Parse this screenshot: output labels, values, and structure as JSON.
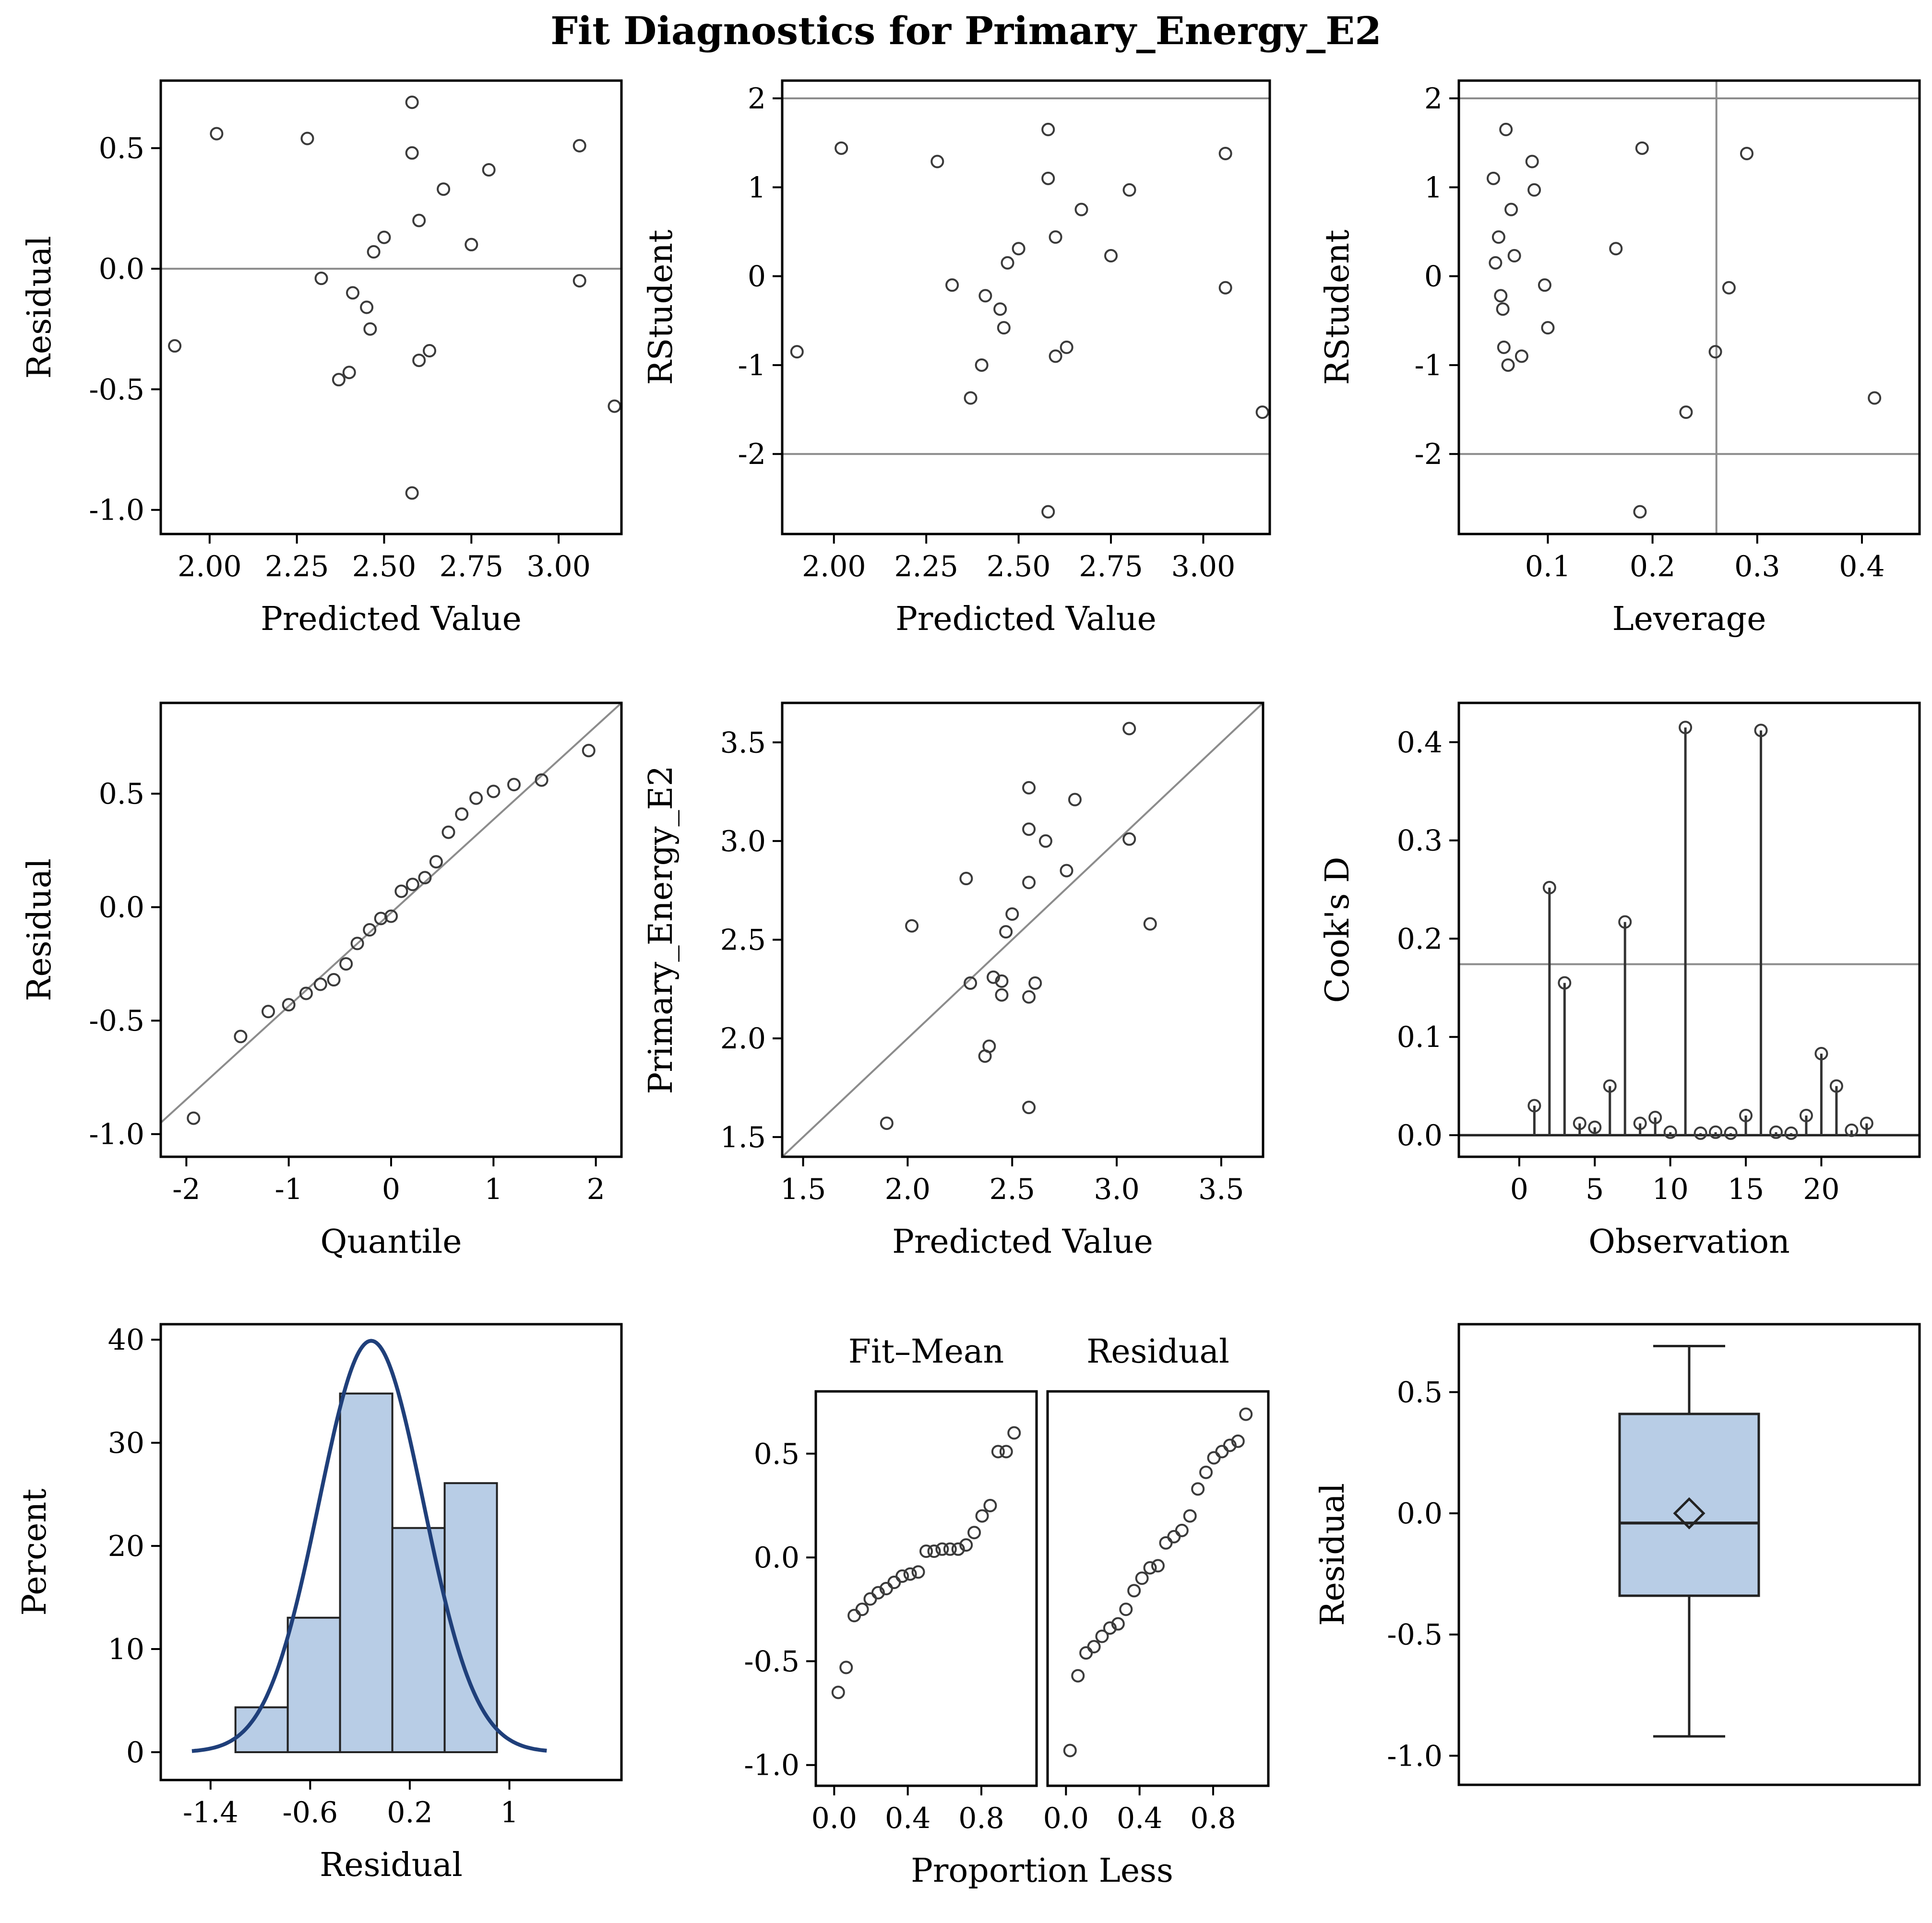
{
  "title": "Fit Diagnostics for Primary_Energy_E2",
  "colors": {
    "marker": "#3a3a3a",
    "reference": "#8c8c8c",
    "bar_fill": "#b8cde6",
    "curve": "#1f3f7a",
    "frame": "#000000"
  },
  "chart_data": [
    {
      "id": "residual-vs-predicted",
      "type": "scatter",
      "xlabel": "Predicted Value",
      "ylabel": "Residual",
      "xlim": [
        1.86,
        3.18
      ],
      "ylim": [
        -1.1,
        0.78
      ],
      "xticks": [
        2.0,
        2.25,
        2.5,
        2.75,
        3.0
      ],
      "xtick_labels": [
        "2.00",
        "2.25",
        "2.50",
        "2.75",
        "3.00"
      ],
      "yticks": [
        -1.0,
        -0.5,
        0.0,
        0.5
      ],
      "ytick_labels": [
        "-1.0",
        "-0.5",
        "0.0",
        "0.5"
      ],
      "hlines": [
        0
      ],
      "points": [
        [
          1.9,
          -0.32
        ],
        [
          2.02,
          0.56
        ],
        [
          2.28,
          0.54
        ],
        [
          2.32,
          -0.04
        ],
        [
          2.37,
          -0.46
        ],
        [
          2.4,
          -0.43
        ],
        [
          2.41,
          -0.1
        ],
        [
          2.45,
          -0.16
        ],
        [
          2.46,
          -0.25
        ],
        [
          2.47,
          0.07
        ],
        [
          2.5,
          0.13
        ],
        [
          2.58,
          0.69
        ],
        [
          2.58,
          0.48
        ],
        [
          2.58,
          -0.93
        ],
        [
          2.6,
          0.2
        ],
        [
          2.6,
          -0.38
        ],
        [
          2.63,
          -0.34
        ],
        [
          2.67,
          0.33
        ],
        [
          2.75,
          0.1
        ],
        [
          2.8,
          0.41
        ],
        [
          3.06,
          0.51
        ],
        [
          3.06,
          -0.05
        ],
        [
          3.16,
          -0.57
        ]
      ]
    },
    {
      "id": "rstudent-vs-predicted",
      "type": "scatter",
      "xlabel": "Predicted Value",
      "ylabel": "RStudent",
      "xlim": [
        1.86,
        3.18
      ],
      "ylim": [
        -2.9,
        2.2
      ],
      "xticks": [
        2.0,
        2.25,
        2.5,
        2.75,
        3.0
      ],
      "xtick_labels": [
        "2.00",
        "2.25",
        "2.50",
        "2.75",
        "3.00"
      ],
      "yticks": [
        -2,
        -1,
        0,
        1,
        2
      ],
      "ytick_labels": [
        "-2",
        "-1",
        "0",
        "1",
        "2"
      ],
      "hlines": [
        -2,
        2
      ],
      "points": [
        [
          1.9,
          -0.85
        ],
        [
          2.02,
          1.44
        ],
        [
          2.28,
          1.29
        ],
        [
          2.32,
          -0.1
        ],
        [
          2.37,
          -1.37
        ],
        [
          2.4,
          -1.0
        ],
        [
          2.41,
          -0.22
        ],
        [
          2.45,
          -0.37
        ],
        [
          2.46,
          -0.58
        ],
        [
          2.47,
          0.15
        ],
        [
          2.5,
          0.31
        ],
        [
          2.58,
          1.65
        ],
        [
          2.58,
          1.1
        ],
        [
          2.58,
          -2.65
        ],
        [
          2.6,
          0.44
        ],
        [
          2.6,
          -0.9
        ],
        [
          2.63,
          -0.8
        ],
        [
          2.67,
          0.75
        ],
        [
          2.75,
          0.23
        ],
        [
          2.8,
          0.97
        ],
        [
          3.06,
          1.38
        ],
        [
          3.06,
          -0.13
        ],
        [
          3.16,
          -1.53
        ]
      ]
    },
    {
      "id": "rstudent-vs-leverage",
      "type": "scatter",
      "xlabel": "Leverage",
      "ylabel": "RStudent",
      "xlim": [
        0.015,
        0.455
      ],
      "ylim": [
        -2.9,
        2.2
      ],
      "xticks": [
        0.1,
        0.2,
        0.3,
        0.4
      ],
      "xtick_labels": [
        "0.1",
        "0.2",
        "0.3",
        "0.4"
      ],
      "yticks": [
        -2,
        -1,
        0,
        1,
        2
      ],
      "ytick_labels": [
        "-2",
        "-1",
        "0",
        "1",
        "2"
      ],
      "hlines": [
        -2,
        2
      ],
      "vlines": [
        0.261
      ],
      "points": [
        [
          0.048,
          1.1
        ],
        [
          0.05,
          0.15
        ],
        [
          0.053,
          0.44
        ],
        [
          0.055,
          -0.22
        ],
        [
          0.057,
          -0.37
        ],
        [
          0.058,
          -0.8
        ],
        [
          0.06,
          1.65
        ],
        [
          0.062,
          -1.0
        ],
        [
          0.065,
          0.75
        ],
        [
          0.068,
          0.23
        ],
        [
          0.075,
          -0.9
        ],
        [
          0.085,
          1.29
        ],
        [
          0.087,
          0.97
        ],
        [
          0.097,
          -0.1
        ],
        [
          0.1,
          -0.58
        ],
        [
          0.165,
          0.31
        ],
        [
          0.188,
          -2.65
        ],
        [
          0.19,
          1.44
        ],
        [
          0.232,
          -1.53
        ],
        [
          0.26,
          -0.85
        ],
        [
          0.273,
          -0.13
        ],
        [
          0.29,
          1.38
        ],
        [
          0.412,
          -1.37
        ]
      ]
    },
    {
      "id": "residual-qq",
      "type": "scatter",
      "xlabel": "Quantile",
      "ylabel": "Residual",
      "xlim": [
        -2.25,
        2.25
      ],
      "ylim": [
        -1.1,
        0.9
      ],
      "xticks": [
        -2,
        -1,
        0,
        1,
        2
      ],
      "xtick_labels": [
        "-2",
        "-1",
        "0",
        "1",
        "2"
      ],
      "yticks": [
        -1.0,
        -0.5,
        0.0,
        0.5
      ],
      "ytick_labels": [
        "-1.0",
        "-0.5",
        "0.0",
        "0.5"
      ],
      "refline": [
        [
          -2.25,
          -0.95
        ],
        [
          2.25,
          0.9
        ]
      ],
      "points": [
        [
          -1.93,
          -0.93
        ],
        [
          -1.47,
          -0.57
        ],
        [
          -1.2,
          -0.46
        ],
        [
          -1.0,
          -0.43
        ],
        [
          -0.83,
          -0.38
        ],
        [
          -0.69,
          -0.34
        ],
        [
          -0.56,
          -0.32
        ],
        [
          -0.44,
          -0.25
        ],
        [
          -0.33,
          -0.16
        ],
        [
          -0.21,
          -0.1
        ],
        [
          -0.1,
          -0.05
        ],
        [
          0.0,
          -0.04
        ],
        [
          0.1,
          0.07
        ],
        [
          0.21,
          0.1
        ],
        [
          0.33,
          0.13
        ],
        [
          0.44,
          0.2
        ],
        [
          0.56,
          0.33
        ],
        [
          0.69,
          0.41
        ],
        [
          0.83,
          0.48
        ],
        [
          1.0,
          0.51
        ],
        [
          1.2,
          0.54
        ],
        [
          1.47,
          0.56
        ],
        [
          1.93,
          0.69
        ]
      ]
    },
    {
      "id": "observed-vs-predicted",
      "type": "scatter",
      "xlabel": "Predicted Value",
      "ylabel": "Primary_Energy_E2",
      "xlim": [
        1.4,
        3.7
      ],
      "ylim": [
        1.4,
        3.7
      ],
      "xticks": [
        1.5,
        2.0,
        2.5,
        3.0,
        3.5
      ],
      "xtick_labels": [
        "1.5",
        "2.0",
        "2.5",
        "3.0",
        "3.5"
      ],
      "yticks": [
        1.5,
        2.0,
        2.5,
        3.0,
        3.5
      ],
      "ytick_labels": [
        "1.5",
        "2.0",
        "2.5",
        "3.0",
        "3.5"
      ],
      "refline": [
        [
          1.4,
          1.4
        ],
        [
          3.7,
          3.7
        ]
      ],
      "points": [
        [
          1.9,
          1.57
        ],
        [
          2.02,
          2.57
        ],
        [
          2.28,
          2.81
        ],
        [
          2.3,
          2.28
        ],
        [
          2.37,
          1.91
        ],
        [
          2.39,
          1.96
        ],
        [
          2.41,
          2.31
        ],
        [
          2.45,
          2.29
        ],
        [
          2.45,
          2.22
        ],
        [
          2.47,
          2.54
        ],
        [
          2.5,
          2.63
        ],
        [
          2.58,
          3.27
        ],
        [
          2.58,
          3.06
        ],
        [
          2.58,
          1.65
        ],
        [
          2.58,
          2.79
        ],
        [
          2.58,
          2.21
        ],
        [
          2.61,
          2.28
        ],
        [
          2.66,
          3.0
        ],
        [
          2.76,
          2.85
        ],
        [
          2.8,
          3.21
        ],
        [
          3.06,
          3.57
        ],
        [
          3.06,
          3.01
        ],
        [
          3.16,
          2.58
        ]
      ]
    },
    {
      "id": "cooks-d",
      "type": "needle",
      "xlabel": "Observation",
      "ylabel": "Cook's D",
      "xlim": [
        -4,
        26.5
      ],
      "ylim": [
        -0.022,
        0.44
      ],
      "xticks": [
        0,
        5,
        10,
        15,
        20
      ],
      "xtick_labels": [
        "0",
        "5",
        "10",
        "15",
        "20"
      ],
      "yticks": [
        0.0,
        0.1,
        0.2,
        0.3,
        0.4
      ],
      "ytick_labels": [
        "0.0",
        "0.1",
        "0.2",
        "0.3",
        "0.4"
      ],
      "hlines": [
        0.174
      ],
      "observations": [
        1,
        2,
        3,
        4,
        5,
        6,
        7,
        8,
        9,
        10,
        11,
        12,
        13,
        14,
        15,
        16,
        17,
        18,
        19,
        20,
        21,
        22,
        23
      ],
      "values": [
        0.03,
        0.252,
        0.155,
        0.012,
        0.008,
        0.05,
        0.217,
        0.012,
        0.018,
        0.003,
        0.415,
        0.002,
        0.003,
        0.002,
        0.02,
        0.412,
        0.003,
        0.002,
        0.02,
        0.083,
        0.05,
        0.005,
        0.012
      ]
    },
    {
      "id": "residual-histogram",
      "type": "bar",
      "xlabel": "Residual",
      "ylabel": "Percent",
      "xlim": [
        -1.8,
        1.9
      ],
      "ylim": [
        -2.7,
        41.5
      ],
      "xticks": [
        -1.4,
        -0.6,
        0.2,
        1.0
      ],
      "xtick_labels": [
        "-1.4",
        "-0.6",
        "0.2",
        "1"
      ],
      "yticks": [
        0,
        10,
        20,
        30,
        40
      ],
      "ytick_labels": [
        "0",
        "10",
        "20",
        "30",
        "40"
      ],
      "bin_edges": [
        -1.2,
        -0.78,
        -0.36,
        0.06,
        0.48,
        0.9
      ],
      "values": [
        4.35,
        13.04,
        34.78,
        21.74,
        26.09
      ],
      "normal_curve": {
        "mean": -0.11,
        "sd": 0.42,
        "n": 23,
        "range": [
          -1.55,
          1.3
        ]
      }
    },
    {
      "id": "residual-fit-spread",
      "type": "scatter",
      "xlabel": "Proportion Less",
      "ylabel": "",
      "panel_labels": [
        "Fit–Mean",
        "Residual"
      ],
      "xlim": [
        -0.1,
        1.1
      ],
      "ylim": [
        -1.1,
        0.8
      ],
      "xticks": [
        0.0,
        0.4,
        0.8
      ],
      "xtick_labels": [
        "0.0",
        "0.4",
        "0.8"
      ],
      "yticks": [
        -1.0,
        -0.5,
        0.0,
        0.5
      ],
      "ytick_labels": [
        "-1.0",
        "-0.5",
        "0.0",
        "0.5"
      ],
      "series": [
        {
          "name": "Fit–Mean",
          "points": [
            [
              0.022,
              -0.65
            ],
            [
              0.065,
              -0.53
            ],
            [
              0.109,
              -0.28
            ],
            [
              0.152,
              -0.25
            ],
            [
              0.196,
              -0.2
            ],
            [
              0.239,
              -0.17
            ],
            [
              0.283,
              -0.15
            ],
            [
              0.326,
              -0.12
            ],
            [
              0.37,
              -0.09
            ],
            [
              0.413,
              -0.08
            ],
            [
              0.457,
              -0.07
            ],
            [
              0.5,
              0.03
            ],
            [
              0.543,
              0.03
            ],
            [
              0.587,
              0.04
            ],
            [
              0.63,
              0.04
            ],
            [
              0.674,
              0.04
            ],
            [
              0.717,
              0.06
            ],
            [
              0.761,
              0.12
            ],
            [
              0.804,
              0.2
            ],
            [
              0.848,
              0.25
            ],
            [
              0.891,
              0.51
            ],
            [
              0.935,
              0.51
            ],
            [
              0.978,
              0.6
            ]
          ]
        },
        {
          "name": "Residual",
          "points": [
            [
              0.022,
              -0.93
            ],
            [
              0.065,
              -0.57
            ],
            [
              0.109,
              -0.46
            ],
            [
              0.152,
              -0.43
            ],
            [
              0.196,
              -0.38
            ],
            [
              0.239,
              -0.34
            ],
            [
              0.283,
              -0.32
            ],
            [
              0.326,
              -0.25
            ],
            [
              0.37,
              -0.16
            ],
            [
              0.413,
              -0.1
            ],
            [
              0.457,
              -0.05
            ],
            [
              0.5,
              -0.04
            ],
            [
              0.543,
              0.07
            ],
            [
              0.587,
              0.1
            ],
            [
              0.63,
              0.13
            ],
            [
              0.674,
              0.2
            ],
            [
              0.717,
              0.33
            ],
            [
              0.761,
              0.41
            ],
            [
              0.804,
              0.48
            ],
            [
              0.848,
              0.51
            ],
            [
              0.891,
              0.54
            ],
            [
              0.935,
              0.56
            ],
            [
              0.978,
              0.69
            ]
          ]
        }
      ]
    },
    {
      "id": "residual-boxplot",
      "type": "box",
      "xlabel": "",
      "ylabel": "Residual",
      "ylim": [
        -1.12,
        0.78
      ],
      "yticks": [
        -1.0,
        -0.5,
        0.0,
        0.5
      ],
      "ytick_labels": [
        "-1.0",
        "-0.5",
        "0.0",
        "0.5"
      ],
      "min": -0.92,
      "q1": -0.34,
      "median": -0.04,
      "q3": 0.41,
      "max": 0.69,
      "mean": 0.0
    }
  ]
}
